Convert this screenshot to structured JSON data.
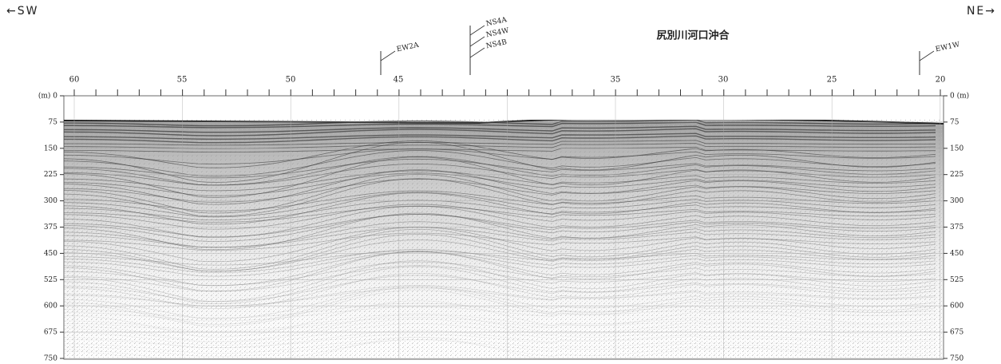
{
  "header": {
    "left": "←SW",
    "right": "NE→",
    "title": "尻別川河口沖合"
  },
  "top_axis": [
    "60",
    "55",
    "50",
    "45",
    "35",
    "30",
    "25",
    "20"
  ],
  "depth_left": [
    "(m) 0",
    "75",
    "150",
    "225",
    "300",
    "375",
    "450",
    "525",
    "600",
    "675",
    "750"
  ],
  "depth_right": [
    "0 (m)",
    "75",
    "150",
    "225",
    "300",
    "375",
    "450",
    "525",
    "600",
    "675",
    "750"
  ],
  "markers": [
    "EW2A",
    "NS4A",
    "NS4W",
    "NS4B",
    "EW1W"
  ]
}
